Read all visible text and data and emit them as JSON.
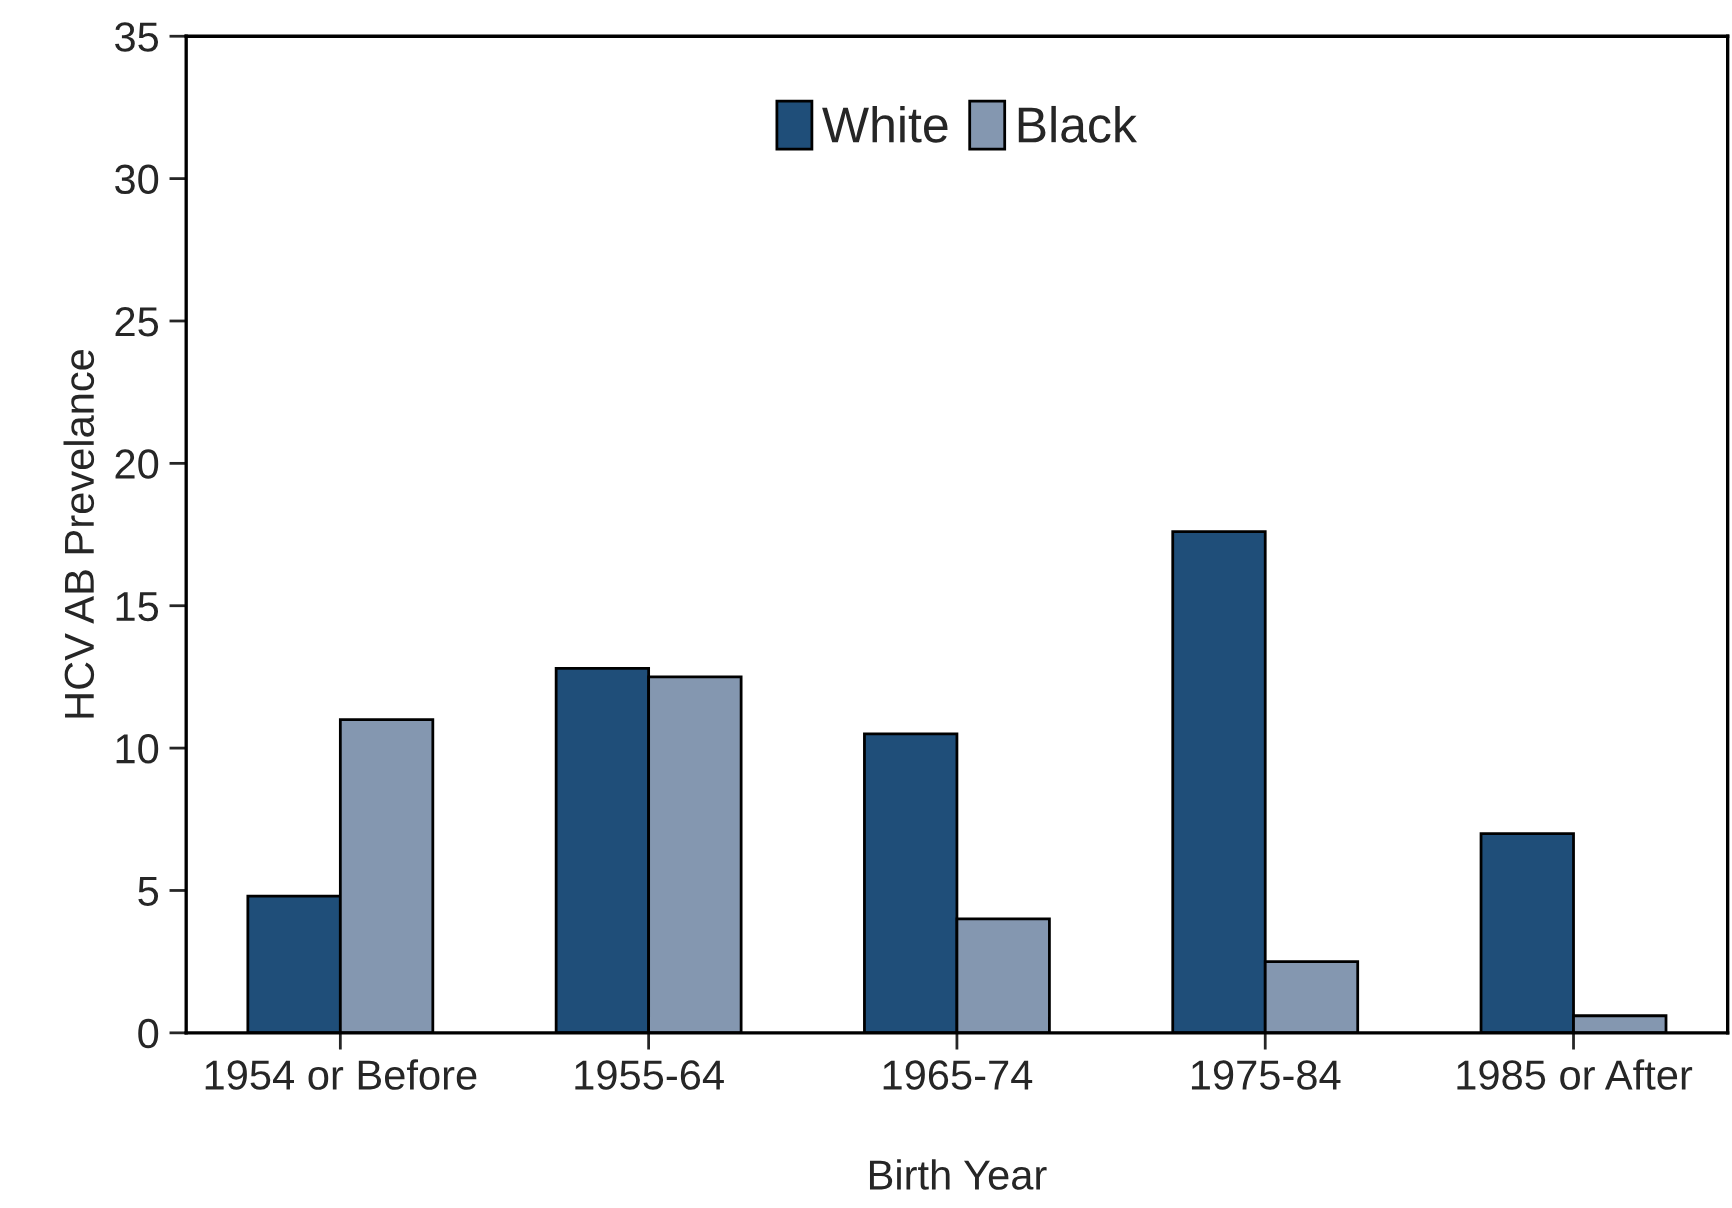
{
  "chart_data": {
    "type": "bar",
    "xlabel": "Birth Year",
    "ylabel": "HCV AB Prevelance",
    "categories": [
      "1954 or Before",
      "1955-64",
      "1965-74",
      "1975-84",
      "1985 or After"
    ],
    "series": [
      {
        "name": "White",
        "color": "#1f4e79",
        "values": [
          4.8,
          12.8,
          10.5,
          17.6,
          7.0
        ]
      },
      {
        "name": "Black",
        "color": "#8497b0",
        "values": [
          11.0,
          12.5,
          4.0,
          2.5,
          0.6
        ]
      }
    ],
    "ylim": [
      0,
      35
    ],
    "yticks": [
      0,
      5,
      10,
      15,
      20,
      25,
      30,
      35
    ],
    "grid": false,
    "legend": "top"
  }
}
